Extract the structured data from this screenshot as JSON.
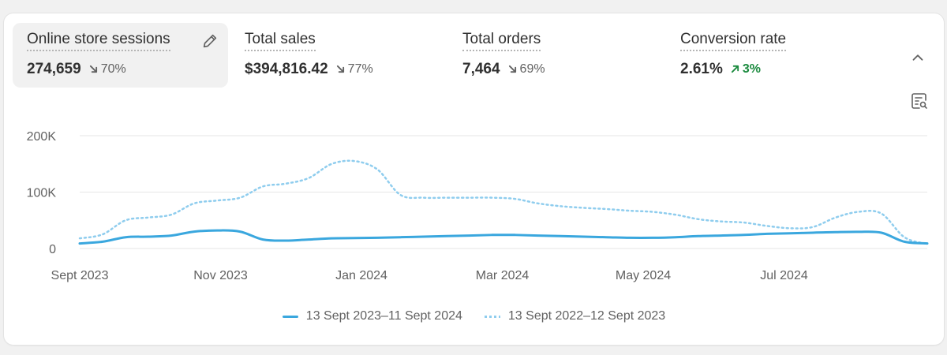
{
  "metrics": [
    {
      "title": "Online store sessions",
      "value": "274,659",
      "change": "70%",
      "direction": "down",
      "selected": true
    },
    {
      "title": "Total sales",
      "value": "$394,816.42",
      "change": "77%",
      "direction": "down",
      "selected": false
    },
    {
      "title": "Total orders",
      "value": "7,464",
      "change": "69%",
      "direction": "down",
      "selected": false
    },
    {
      "title": "Conversion rate",
      "value": "2.61%",
      "change": "3%",
      "direction": "up",
      "selected": false
    }
  ],
  "icons": {
    "edit": "pencil-icon",
    "collapse": "chevron-up-icon",
    "filter": "search-filter-icon"
  },
  "colors": {
    "current_series": "#3aa7de",
    "previous_series": "#8fcdee",
    "up": "#1a8a3e",
    "down": "#616161"
  },
  "chart_data": {
    "type": "line",
    "x_tick_labels": [
      "Sept 2023",
      "Nov 2023",
      "Jan 2024",
      "Mar 2024",
      "May 2024",
      "Jul 2024"
    ],
    "y_tick_labels": [
      "200K",
      "100K",
      "0"
    ],
    "ylim": [
      0,
      200000
    ],
    "grid": true,
    "legend": "bottom-center",
    "series": [
      {
        "name": "13 Sept 2023–11 Sept 2024",
        "style": "solid",
        "values": [
          9000,
          12000,
          20000,
          21000,
          23000,
          30000,
          32000,
          30000,
          16000,
          14000,
          16000,
          18000,
          18500,
          19000,
          20000,
          21000,
          22000,
          23000,
          24000,
          24000,
          23000,
          22000,
          21000,
          20000,
          19000,
          19000,
          20000,
          22000,
          23000,
          24000,
          26000,
          27000,
          28000,
          29000,
          29500,
          28000,
          12000,
          9000
        ]
      },
      {
        "name": "13 Sept 2022–12 Sept 2023",
        "style": "dotted",
        "values": [
          18000,
          25000,
          50000,
          55000,
          60000,
          80000,
          85000,
          90000,
          110000,
          115000,
          125000,
          150000,
          155000,
          140000,
          95000,
          90000,
          90000,
          90000,
          90000,
          88000,
          80000,
          75000,
          72000,
          70000,
          67000,
          65000,
          60000,
          52000,
          48000,
          46000,
          40000,
          36000,
          38000,
          55000,
          65000,
          62000,
          20000,
          8000
        ]
      }
    ]
  }
}
